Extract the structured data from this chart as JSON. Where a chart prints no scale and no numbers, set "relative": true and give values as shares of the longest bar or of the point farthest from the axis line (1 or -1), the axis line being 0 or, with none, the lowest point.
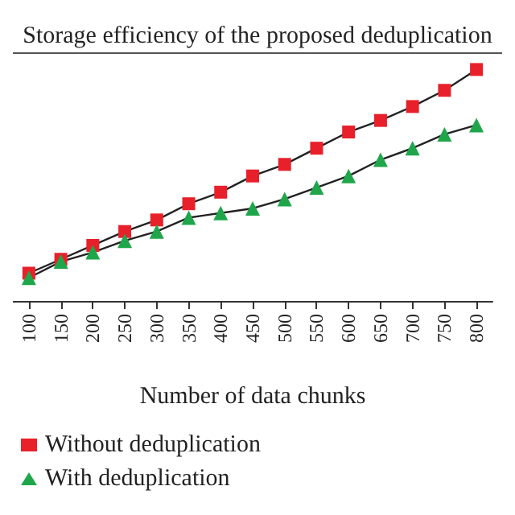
{
  "chart_data": {
    "type": "line",
    "title": "Storage efficiency of the proposed deduplication",
    "xlabel": "Number of data chunks",
    "categories": [
      "100",
      "150",
      "200",
      "250",
      "300",
      "350",
      "400",
      "450",
      "500",
      "550",
      "600",
      "650",
      "700",
      "750",
      "800"
    ],
    "relative": true,
    "grid": false,
    "legend": "bottom left",
    "line_style": "solid",
    "series": [
      {
        "name": "Without deduplication",
        "color": "#e8202a",
        "marker": "square",
        "values": [
          0.12,
          0.18,
          0.24,
          0.3,
          0.35,
          0.42,
          0.47,
          0.54,
          0.59,
          0.66,
          0.73,
          0.78,
          0.84,
          0.91,
          1.0
        ]
      },
      {
        "name": "With deduplication",
        "color": "#1fa64a",
        "marker": "triangle",
        "values": [
          0.1,
          0.17,
          0.21,
          0.26,
          0.3,
          0.36,
          0.38,
          0.4,
          0.44,
          0.49,
          0.54,
          0.61,
          0.66,
          0.72,
          0.76
        ]
      }
    ]
  }
}
